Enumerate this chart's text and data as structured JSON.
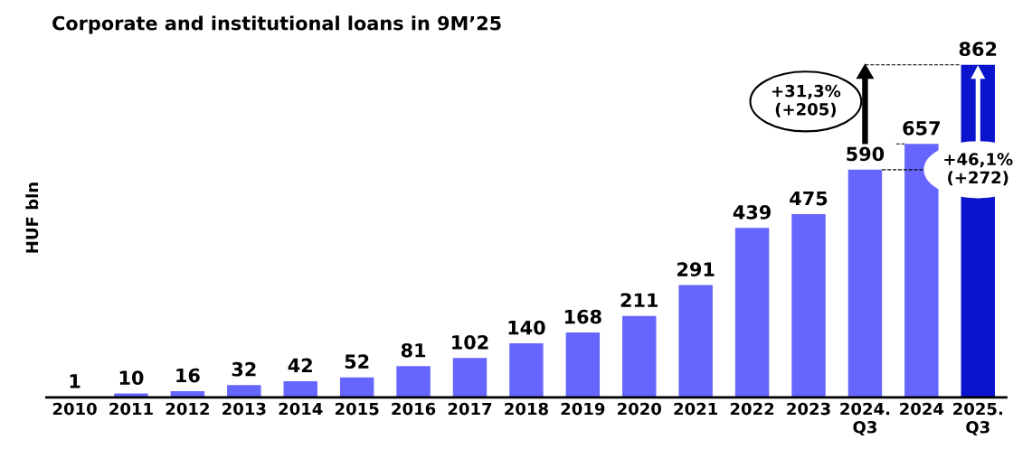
{
  "chart_data": {
    "type": "bar",
    "title": "Corporate and institutional loans in 9M’25",
    "ylabel": "HUF bln",
    "categories": [
      "2010",
      "2011",
      "2012",
      "2013",
      "2014",
      "2015",
      "2016",
      "2017",
      "2018",
      "2019",
      "2020",
      "2021",
      "2022",
      "2023",
      "2024.\nQ3",
      "2024",
      "2025.\nQ3"
    ],
    "values": [
      1,
      10,
      16,
      32,
      42,
      52,
      81,
      102,
      140,
      168,
      211,
      291,
      439,
      475,
      590,
      657,
      862
    ],
    "colors": [
      "#6666ff",
      "#6666ff",
      "#6666ff",
      "#6666ff",
      "#6666ff",
      "#6666ff",
      "#6666ff",
      "#6666ff",
      "#6666ff",
      "#6666ff",
      "#6666ff",
      "#6666ff",
      "#6666ff",
      "#6666ff",
      "#6666ff",
      "#6666ff",
      "#0a14cc"
    ],
    "data_labels": true,
    "tick_labels": "x",
    "grid": false,
    "legend": false,
    "annotations": [
      "+31,3%\n(+205)",
      "+46,1%\n(+272)"
    ]
  }
}
